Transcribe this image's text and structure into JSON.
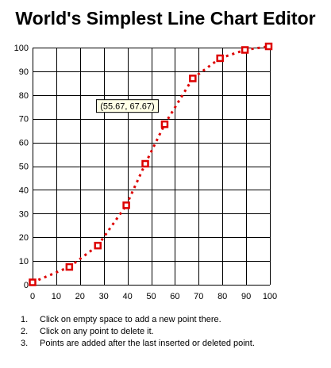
{
  "page": {
    "title": "World's Simplest Line Chart Editor"
  },
  "chart_data": {
    "type": "line",
    "title": "World's Simplest Line Chart Editor",
    "xlabel": "",
    "ylabel": "",
    "xlim": [
      0,
      100
    ],
    "ylim": [
      0,
      100
    ],
    "x_ticks": [
      0,
      10,
      20,
      30,
      40,
      50,
      60,
      70,
      80,
      90,
      100
    ],
    "y_ticks": [
      0,
      10,
      20,
      30,
      40,
      50,
      60,
      70,
      80,
      90,
      100
    ],
    "grid": true,
    "line_style": "dotted",
    "colors": {
      "line": "#dd0000",
      "marker": "#dd0000",
      "grid": "#000000"
    },
    "series": [
      {
        "points": [
          {
            "x": 0,
            "y": 1
          },
          {
            "x": 15.5,
            "y": 7.5
          },
          {
            "x": 27.5,
            "y": 16.5
          },
          {
            "x": 39.5,
            "y": 33.5
          },
          {
            "x": 47.5,
            "y": 51
          },
          {
            "x": 55.67,
            "y": 67.67
          },
          {
            "x": 67.5,
            "y": 87
          },
          {
            "x": 79,
            "y": 95.5
          },
          {
            "x": 89.5,
            "y": 99
          },
          {
            "x": 99.5,
            "y": 100.5
          }
        ]
      }
    ],
    "tooltip": {
      "text": "(55.67, 67.67)",
      "point_index": 5
    }
  },
  "instructions": [
    {
      "num": "1.",
      "text": "Click on empty space to add a new point there."
    },
    {
      "num": "2.",
      "text": "Click on any point to delete it."
    },
    {
      "num": "3.",
      "text": "Points are added after the last inserted or deleted point."
    }
  ]
}
